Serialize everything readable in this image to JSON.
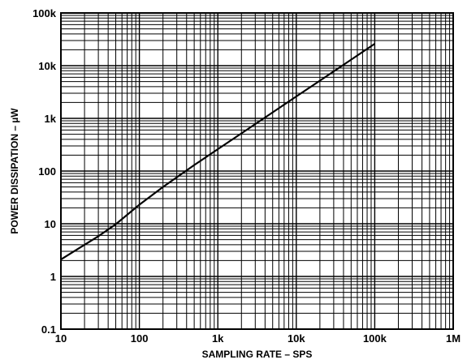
{
  "chart_data": {
    "type": "line",
    "xlabel": "SAMPLING RATE – SPS",
    "ylabel": "POWER DISSIPATION – µW",
    "x_scale": "log",
    "y_scale": "log",
    "xlim": [
      10,
      1000000
    ],
    "ylim": [
      0.1,
      100000
    ],
    "grid": true,
    "x_ticks": [
      10,
      100,
      1000,
      10000,
      100000,
      1000000
    ],
    "x_tick_labels": [
      "10",
      "100",
      "1k",
      "10k",
      "100k",
      "1M"
    ],
    "y_ticks": [
      0.1,
      1,
      10,
      100,
      1000,
      10000,
      100000
    ],
    "y_tick_labels": [
      "0.1",
      "1",
      "10",
      "100",
      "1k",
      "10k",
      "100k"
    ],
    "series": [
      {
        "x": [
          10,
          20,
          30,
          50,
          100,
          200,
          500,
          1000,
          2000,
          5000,
          10000,
          20000,
          50000,
          100000
        ],
        "y": [
          2.1,
          4.0,
          5.8,
          9.8,
          23,
          50,
          130,
          260,
          520,
          1300,
          2600,
          5200,
          13000,
          26000
        ]
      }
    ],
    "line_color": "#000000"
  }
}
